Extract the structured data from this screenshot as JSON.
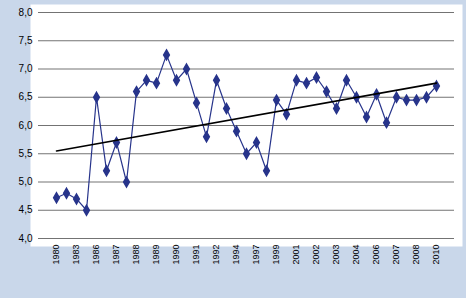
{
  "chart_data": {
    "type": "line",
    "categories": [
      "1980",
      null,
      "1983",
      null,
      "1986",
      null,
      "1987",
      null,
      "1988",
      null,
      "1989",
      null,
      "1990",
      null,
      "1991",
      null,
      "1992",
      null,
      "1994",
      null,
      "1997",
      null,
      "1999",
      null,
      "2001",
      null,
      "2002",
      null,
      "2003",
      null,
      "2004",
      null,
      "2006",
      null,
      "2007",
      null,
      "2008",
      null,
      "2010"
    ],
    "series": [
      {
        "color": "#27348b",
        "marker": "diamond",
        "line_style": "solid",
        "values": [
          4.72,
          4.8,
          4.7,
          4.5,
          6.5,
          5.2,
          5.7,
          5.0,
          6.6,
          6.8,
          6.75,
          7.25,
          6.8,
          7.0,
          6.4,
          5.8,
          6.8,
          6.3,
          5.9,
          5.5,
          5.7,
          5.2,
          6.45,
          6.2,
          6.8,
          6.75,
          6.85,
          6.6,
          6.3,
          6.8,
          6.5,
          6.15,
          6.55,
          6.05,
          6.5,
          6.45,
          6.45,
          6.5,
          6.7
        ]
      },
      {
        "color": "#000000",
        "marker": "none",
        "line_style": "solid",
        "values": [
          5.55,
          null,
          null,
          null,
          null,
          null,
          null,
          null,
          null,
          null,
          null,
          null,
          null,
          null,
          null,
          null,
          null,
          null,
          null,
          null,
          null,
          null,
          null,
          null,
          null,
          null,
          null,
          null,
          null,
          null,
          null,
          null,
          null,
          null,
          null,
          null,
          null,
          null,
          6.75
        ]
      }
    ],
    "ylim": [
      4,
      8
    ],
    "yticks": [
      {
        "value": 4,
        "label": "4,0"
      },
      {
        "value": 4.5,
        "label": "4,5"
      },
      {
        "value": 5,
        "label": "5,0"
      },
      {
        "value": 5.5,
        "label": "5,5"
      },
      {
        "value": 6,
        "label": "6,0"
      },
      {
        "value": 6.5,
        "label": "6,5"
      },
      {
        "value": 7,
        "label": "7,0"
      },
      {
        "value": 7.5,
        "label": "7,5"
      },
      {
        "value": 8,
        "label": "8,0"
      }
    ],
    "grid": true
  }
}
